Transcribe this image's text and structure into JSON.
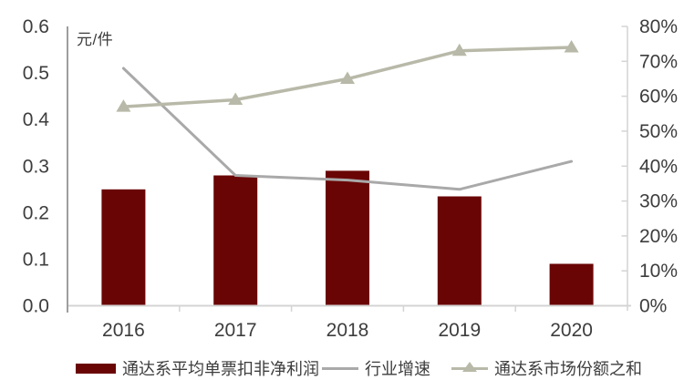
{
  "colors": {
    "bar": "#6a0505",
    "industry_line": "#a9a9a9",
    "share_line": "#b9b9a9",
    "text": "#3d3d3d",
    "axis_gray": "#9e9e9e",
    "axis_light": "#d4d4d4"
  },
  "chart_data": {
    "type": "combo bar+line, dual y-axis",
    "categories": [
      "2016",
      "2017",
      "2018",
      "2019",
      "2020"
    ],
    "series": [
      {
        "name": "通达系平均单票扣非净利润",
        "type": "bar",
        "axis": "left",
        "unit": "元/件",
        "values": [
          0.25,
          0.28,
          0.29,
          0.235,
          0.09
        ]
      },
      {
        "name": "行业增速",
        "type": "line",
        "axis": "left",
        "note": "percent values plotted against left axis as decimals",
        "values_pct": [
          51,
          28,
          27,
          25,
          31
        ]
      },
      {
        "name": "通达系市场份额之和",
        "type": "line",
        "axis": "right",
        "marker": "triangle",
        "values_pct": [
          57,
          59,
          65,
          73,
          74
        ]
      }
    ],
    "left_axis": {
      "unit_label": "元/件",
      "min": 0,
      "max": 0.6,
      "tick_values": [
        0,
        0.1,
        0.2,
        0.3,
        0.4,
        0.5,
        0.6
      ],
      "tick_labels": [
        "0.0",
        "0.1",
        "0.2",
        "0.3",
        "0.4",
        "0.5",
        "0.6"
      ]
    },
    "right_axis": {
      "min": 0,
      "max": 80,
      "tick_values": [
        0,
        10,
        20,
        30,
        40,
        50,
        60,
        70,
        80
      ],
      "tick_labels": [
        "0%",
        "10%",
        "20%",
        "30%",
        "40%",
        "50%",
        "60%",
        "70%",
        "80%"
      ]
    },
    "grid": false,
    "legend_position": "bottom"
  },
  "legend": {
    "items": [
      {
        "label": "通达系平均单票扣非净利润",
        "swatch": "bar"
      },
      {
        "label": "行业增速",
        "swatch": "line-gray"
      },
      {
        "label": "通达系市场份额之和",
        "swatch": "line-triangle"
      }
    ]
  }
}
